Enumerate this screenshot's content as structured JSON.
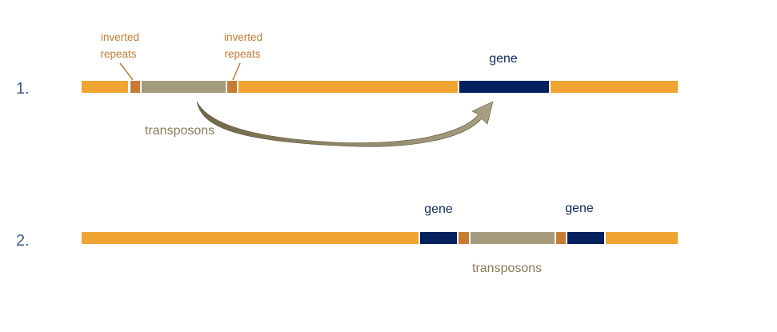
{
  "steps": [
    {
      "number": "1."
    },
    {
      "number": "2."
    }
  ],
  "labels": {
    "inverted_repeats_line1": "inverted",
    "inverted_repeats_line2": "repeats",
    "gene": "gene",
    "transposons": "transposons"
  },
  "colors": {
    "dna_strand": "#f0a431",
    "inverted_repeat": "#c97a33",
    "transposon": "#a39b7b",
    "gene": "#04215e",
    "arrow": "#7e7656",
    "step_number": "#3b5a8c",
    "inverted_repeat_label": "#c77a33",
    "gene_label": "#0f2a5c",
    "transposon_label": "#8a7a5a"
  }
}
